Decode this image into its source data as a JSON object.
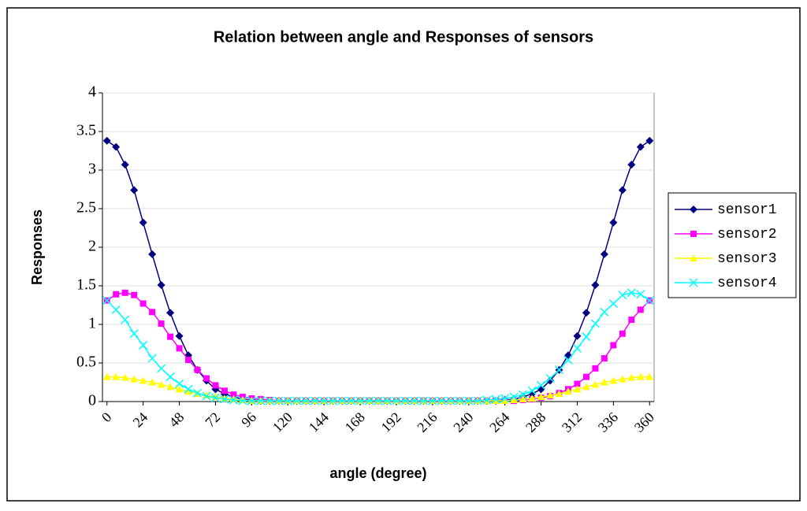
{
  "chart_data": {
    "type": "line",
    "title": "Relation between angle and Responses of sensors",
    "x_label": "angle (degree)",
    "y_label": "Responses",
    "categories": [
      0,
      null,
      null,
      null,
      24,
      null,
      null,
      null,
      48,
      null,
      null,
      null,
      72,
      null,
      null,
      null,
      96,
      null,
      null,
      null,
      120,
      null,
      null,
      null,
      144,
      null,
      null,
      null,
      168,
      null,
      null,
      null,
      192,
      null,
      null,
      null,
      216,
      null,
      null,
      null,
      240,
      null,
      null,
      null,
      264,
      null,
      null,
      null,
      288,
      null,
      null,
      null,
      312,
      null,
      null,
      null,
      336,
      null,
      null,
      null,
      360
    ],
    "ylim": [
      0,
      4
    ],
    "yticks": [
      0,
      0.5,
      1,
      1.5,
      2,
      2.5,
      3,
      3.5,
      4
    ],
    "grid": true,
    "legend": "right",
    "series": [
      {
        "name": "sensor1",
        "color": "#000080",
        "marker": "diamond",
        "values": [
          3.38,
          3.3,
          3.07,
          2.74,
          2.32,
          1.91,
          1.51,
          1.15,
          0.85,
          0.6,
          0.41,
          0.27,
          0.16,
          0.1,
          0.06,
          0.03,
          0.02,
          0.01,
          0.01,
          0.01,
          0.01,
          0.01,
          0.01,
          0.01,
          0.01,
          0.01,
          0.01,
          0.01,
          0.01,
          0.01,
          0.01,
          0.01,
          0.01,
          0.01,
          0.01,
          0.01,
          0.01,
          0.01,
          0.01,
          0.01,
          0.01,
          0.01,
          0.01,
          0.01,
          0.02,
          0.03,
          0.06,
          0.1,
          0.16,
          0.27,
          0.41,
          0.6,
          0.85,
          1.15,
          1.51,
          1.91,
          2.32,
          2.74,
          3.07,
          3.3,
          3.38
        ]
      },
      {
        "name": "sensor2",
        "color": "#ff00ff",
        "marker": "square",
        "values": [
          1.31,
          1.39,
          1.41,
          1.38,
          1.27,
          1.16,
          1.01,
          0.84,
          0.69,
          0.54,
          0.41,
          0.3,
          0.21,
          0.14,
          0.09,
          0.06,
          0.04,
          0.03,
          0.02,
          0.01,
          0.01,
          0.01,
          0.01,
          0.01,
          0.01,
          0.01,
          0.01,
          0.01,
          0.01,
          0.01,
          0.01,
          0.01,
          0.01,
          0.01,
          0.01,
          0.01,
          0.01,
          0.01,
          0.01,
          0.01,
          0.01,
          0.01,
          0.01,
          0.01,
          0.01,
          0.01,
          0.02,
          0.03,
          0.05,
          0.07,
          0.11,
          0.16,
          0.23,
          0.32,
          0.43,
          0.56,
          0.73,
          0.88,
          1.06,
          1.19,
          1.31
        ]
      },
      {
        "name": "sensor3",
        "color": "#ffff00",
        "marker": "triangle",
        "values": [
          0.32,
          0.32,
          0.31,
          0.29,
          0.27,
          0.25,
          0.22,
          0.19,
          0.16,
          0.13,
          0.1,
          0.08,
          0.06,
          0.04,
          0.03,
          0.02,
          0.01,
          0.01,
          0.01,
          0.01,
          0.01,
          0.01,
          0.01,
          0.01,
          0.01,
          0.01,
          0.01,
          0.01,
          0.01,
          0.01,
          0.01,
          0.01,
          0.01,
          0.01,
          0.01,
          0.01,
          0.01,
          0.01,
          0.01,
          0.01,
          0.01,
          0.01,
          0.01,
          0.01,
          0.01,
          0.02,
          0.03,
          0.04,
          0.06,
          0.08,
          0.1,
          0.13,
          0.16,
          0.19,
          0.22,
          0.25,
          0.27,
          0.29,
          0.31,
          0.32,
          0.32
        ]
      },
      {
        "name": "sensor4",
        "color": "#00ffff",
        "marker": "x",
        "values": [
          1.31,
          1.19,
          1.06,
          0.88,
          0.73,
          0.56,
          0.43,
          0.32,
          0.23,
          0.16,
          0.11,
          0.07,
          0.05,
          0.03,
          0.02,
          0.01,
          0.01,
          0.01,
          0.01,
          0.01,
          0.01,
          0.01,
          0.01,
          0.01,
          0.01,
          0.01,
          0.01,
          0.01,
          0.01,
          0.01,
          0.01,
          0.01,
          0.01,
          0.01,
          0.01,
          0.01,
          0.01,
          0.01,
          0.01,
          0.01,
          0.01,
          0.01,
          0.02,
          0.03,
          0.04,
          0.06,
          0.09,
          0.14,
          0.21,
          0.3,
          0.41,
          0.54,
          0.69,
          0.84,
          1.01,
          1.16,
          1.27,
          1.38,
          1.41,
          1.39,
          1.31
        ]
      }
    ]
  }
}
